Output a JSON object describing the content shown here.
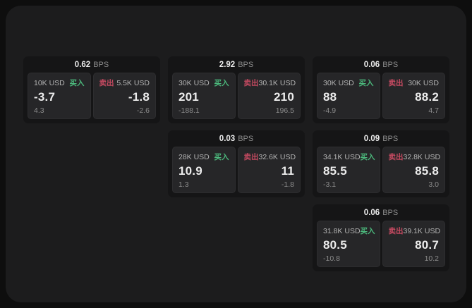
{
  "colors": {
    "page_bg": "#0e0e0e",
    "container_bg": "#1c1c1d",
    "card_bg": "#151516",
    "panel_bg": "#262628",
    "text_primary": "#ececec",
    "text_label": "#b3b3b3",
    "text_dim": "#8c8c8c",
    "buy_green": "#4cba7d",
    "sell_red": "#c54a61"
  },
  "labels": {
    "bps_unit": "BPS",
    "buy": "买入",
    "sell": "卖出"
  },
  "cards": [
    {
      "bps": "0.62",
      "grid": {
        "row": 1,
        "col": 1
      },
      "buy": {
        "amount": "10K USD",
        "value": "-3.7",
        "sub": "4.3"
      },
      "sell": {
        "amount": "5.5K USD",
        "value": "-1.8",
        "sub": "-2.6"
      }
    },
    {
      "bps": "2.92",
      "grid": {
        "row": 1,
        "col": 2
      },
      "buy": {
        "amount": "30K USD",
        "value": "201",
        "sub": "-188.1"
      },
      "sell": {
        "amount": "30.1K USD",
        "value": "210",
        "sub": "196.5"
      }
    },
    {
      "bps": "0.06",
      "grid": {
        "row": 1,
        "col": 3
      },
      "buy": {
        "amount": "30K USD",
        "value": "88",
        "sub": "-4.9"
      },
      "sell": {
        "amount": "30K USD",
        "value": "88.2",
        "sub": "4.7"
      }
    },
    {
      "bps": "0.03",
      "grid": {
        "row": 2,
        "col": 2
      },
      "buy": {
        "amount": "28K USD",
        "value": "10.9",
        "sub": "1.3"
      },
      "sell": {
        "amount": "32.6K USD",
        "value": "11",
        "sub": "-1.8"
      }
    },
    {
      "bps": "0.09",
      "grid": {
        "row": 2,
        "col": 3
      },
      "buy": {
        "amount": "34.1K USD",
        "value": "85.5",
        "sub": "-3.1"
      },
      "sell": {
        "amount": "32.8K USD",
        "value": "85.8",
        "sub": "3.0"
      }
    },
    {
      "bps": "0.06",
      "grid": {
        "row": 3,
        "col": 3
      },
      "buy": {
        "amount": "31.8K USD",
        "value": "80.5",
        "sub": "-10.8"
      },
      "sell": {
        "amount": "39.1K USD",
        "value": "80.7",
        "sub": "10.2"
      }
    }
  ]
}
